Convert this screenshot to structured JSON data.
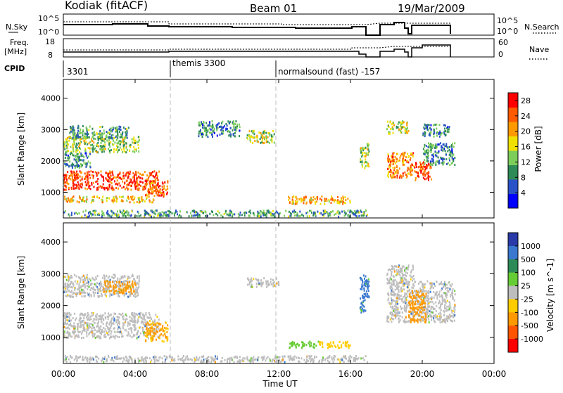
{
  "header": {
    "station": "Kodiak (fitACF)",
    "beam": "Beam 01",
    "date": "19/Mar/2009"
  },
  "noise_panel": {
    "left_label": "N.Sky",
    "right_label": "N.Search",
    "left_ticks": [
      "10^5",
      "10^0"
    ],
    "right_ticks": [
      "10^5",
      "10^0"
    ]
  },
  "freq_panel": {
    "left_label_1": "Freq.",
    "left_label_2": "[MHz]",
    "right_label": "Nave",
    "left_ticks": [
      "18",
      "8"
    ],
    "right_ticks": [
      "60",
      "0"
    ]
  },
  "cpid": {
    "label": "CPID",
    "modes": [
      {
        "text": "3301",
        "start_hour": 0
      },
      {
        "text": "themis 3300",
        "start_hour": 6
      },
      {
        "text": "normalsound (fast) -157",
        "start_hour": 12
      }
    ]
  },
  "colors": {
    "power_scale": [
      "#0000ff",
      "#2a52c8",
      "#2e8b57",
      "#7ccd5a",
      "#f0e000",
      "#ff9900",
      "#ff5a00",
      "#ff0000"
    ],
    "velocity_scale": [
      "#2a3aa8",
      "#3a78d0",
      "#2e8b57",
      "#66cc33",
      "#bdbdbd",
      "#ffcc00",
      "#ff9900",
      "#ff5500",
      "#ff0000"
    ],
    "ground_scatter": "#bdbdbd"
  },
  "chart_data": [
    {
      "type": "heatmap",
      "title": "",
      "xlabel": "Time UT",
      "ylabel": "Slant Range [km]",
      "xlim_hours": [
        0,
        24
      ],
      "ylim": [
        180,
        4600
      ],
      "x_ticks": [
        "00:00",
        "04:00",
        "08:00",
        "12:00",
        "16:00",
        "20:00",
        "00:00"
      ],
      "y_ticks": [
        1000,
        2000,
        3000,
        4000
      ],
      "colorbar_label": "Power [dB]",
      "colorbar_ticks": [
        4,
        8,
        12,
        16,
        20,
        24,
        28
      ],
      "colorbar_range": [
        0,
        30
      ],
      "regions": [
        {
          "t": [
            0.0,
            5.3
          ],
          "r": [
            1100,
            1700
          ],
          "level": 26
        },
        {
          "t": [
            0.0,
            4.2
          ],
          "r": [
            2300,
            2800
          ],
          "level": 14
        },
        {
          "t": [
            0.3,
            3.6
          ],
          "r": [
            2750,
            3150
          ],
          "level": 10
        },
        {
          "t": [
            0.0,
            1.5
          ],
          "r": [
            1800,
            2300
          ],
          "level": 9
        },
        {
          "t": [
            4.5,
            5.8
          ],
          "r": [
            900,
            1400
          ],
          "level": 24
        },
        {
          "t": [
            0.0,
            5.0
          ],
          "r": [
            700,
            900
          ],
          "level": 18
        },
        {
          "t": [
            7.5,
            9.8
          ],
          "r": [
            2800,
            3300
          ],
          "level": 9
        },
        {
          "t": [
            10.2,
            11.8
          ],
          "r": [
            2600,
            3000
          ],
          "level": 15
        },
        {
          "t": [
            12.5,
            16.0
          ],
          "r": [
            650,
            900
          ],
          "level": 20
        },
        {
          "t": [
            16.5,
            17.0
          ],
          "r": [
            1800,
            2600
          ],
          "level": 14
        },
        {
          "t": [
            18.0,
            19.5
          ],
          "r": [
            1500,
            2300
          ],
          "level": 22
        },
        {
          "t": [
            19.5,
            20.5
          ],
          "r": [
            1400,
            2000
          ],
          "level": 26
        },
        {
          "t": [
            20.0,
            21.8
          ],
          "r": [
            1900,
            2600
          ],
          "level": 9
        },
        {
          "t": [
            18.0,
            19.2
          ],
          "r": [
            2900,
            3300
          ],
          "level": 16
        },
        {
          "t": [
            20.0,
            21.5
          ],
          "r": [
            2800,
            3200
          ],
          "level": 9
        },
        {
          "t": [
            0.0,
            17.0
          ],
          "r": [
            250,
            450
          ],
          "level": 10
        }
      ]
    },
    {
      "type": "heatmap",
      "title": "",
      "xlabel": "Time UT",
      "ylabel": "Slant Range [km]",
      "xlim_hours": [
        0,
        24
      ],
      "ylim": [
        180,
        4600
      ],
      "x_ticks": [
        "00:00",
        "04:00",
        "08:00",
        "12:00",
        "16:00",
        "20:00",
        "00:00"
      ],
      "y_ticks": [
        1000,
        2000,
        3000,
        4000
      ],
      "colorbar_label": "Velocity [m s^-1]",
      "colorbar_ticks": [
        1000,
        500,
        100,
        25,
        -25,
        -100,
        -500,
        -1000
      ],
      "regions": [
        {
          "t": [
            0.0,
            5.3
          ],
          "r": [
            1000,
            1800
          ],
          "level": "gs"
        },
        {
          "t": [
            0.0,
            4.2
          ],
          "r": [
            2300,
            3000
          ],
          "level": "gs"
        },
        {
          "t": [
            4.5,
            5.8
          ],
          "r": [
            900,
            1500
          ],
          "level": -120
        },
        {
          "t": [
            2.2,
            4.0
          ],
          "r": [
            2400,
            2800
          ],
          "level": -300
        },
        {
          "t": [
            10.2,
            12.0
          ],
          "r": [
            2600,
            2900
          ],
          "level": "gs"
        },
        {
          "t": [
            12.5,
            14.2
          ],
          "r": [
            700,
            900
          ],
          "level": 60
        },
        {
          "t": [
            14.2,
            16.0
          ],
          "r": [
            700,
            900
          ],
          "level": -60
        },
        {
          "t": [
            16.5,
            17.0
          ],
          "r": [
            1800,
            3000
          ],
          "level": 150
        },
        {
          "t": [
            18.0,
            21.8
          ],
          "r": [
            1500,
            2800
          ],
          "level": "gs"
        },
        {
          "t": [
            19.2,
            20.2
          ],
          "r": [
            1500,
            2500
          ],
          "level": -200
        },
        {
          "t": [
            18.0,
            19.5
          ],
          "r": [
            2800,
            3300
          ],
          "level": "gs"
        },
        {
          "t": [
            0.0,
            17.0
          ],
          "r": [
            250,
            450
          ],
          "level": "gs"
        }
      ]
    }
  ]
}
